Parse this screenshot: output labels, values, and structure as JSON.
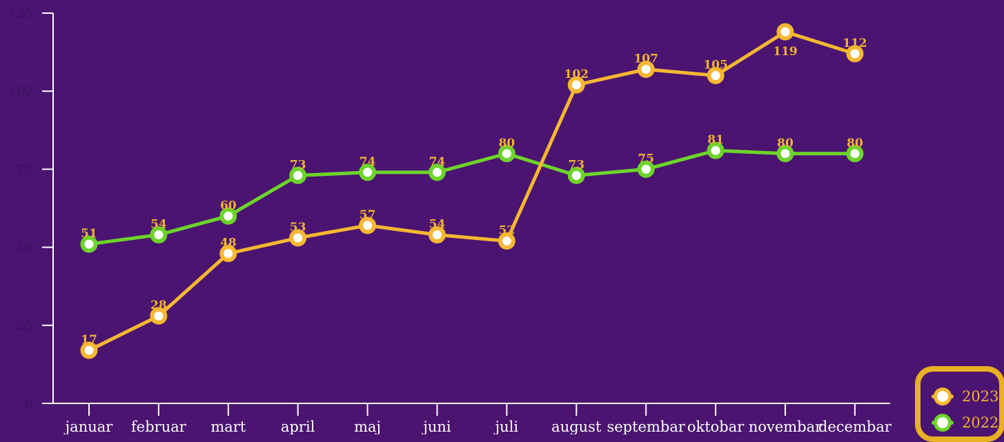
{
  "chart_data": {
    "type": "line",
    "categories": [
      "januar",
      "februar",
      "mart",
      "april",
      "maj",
      "juni",
      "juli",
      "august",
      "septembar",
      "oktobar",
      "novembar",
      "decembar"
    ],
    "series": [
      {
        "name": "2023",
        "color": "#f7b731",
        "values": [
          17,
          28,
          48,
          53,
          57,
          54,
          52,
          102,
          107,
          105,
          119,
          112
        ]
      },
      {
        "name": "2022",
        "color": "#6dd42a",
        "values": [
          51,
          54,
          60,
          73,
          74,
          74,
          80,
          73,
          75,
          81,
          80,
          80
        ]
      }
    ],
    "ylim": [
      0,
      125
    ],
    "yticks": [
      0,
      25,
      50,
      75,
      100,
      125
    ],
    "xlabel": "",
    "ylabel": "",
    "title": "",
    "legend_position": "bottom-right",
    "grid": false
  }
}
